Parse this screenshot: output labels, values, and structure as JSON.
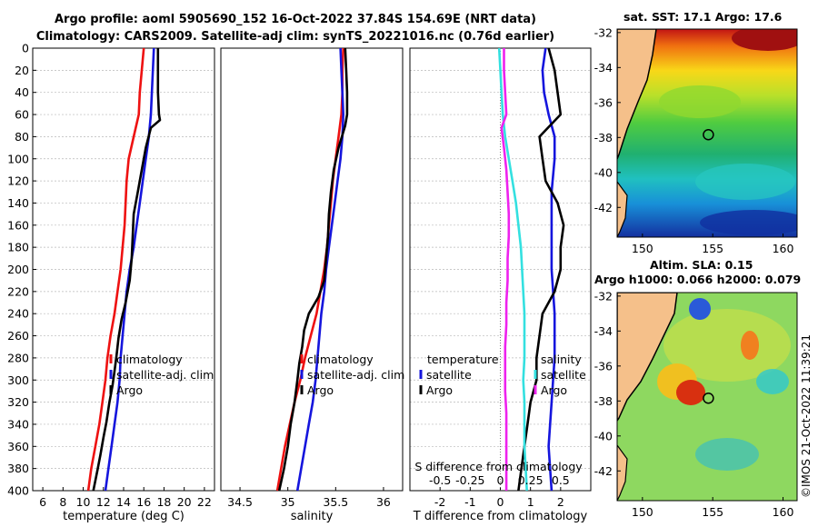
{
  "header": {
    "line1": "Argo profile: aoml 5905690_152 16-Oct-2022 37.84S 154.69E (NRT data)",
    "line2": "Climatology: CARS2009. Satellite-adj clim: synTS_20221016.nc (0.76d earlier)"
  },
  "colors": {
    "climatology": "#ee1111",
    "satellite": "#1515dd",
    "argo": "#000000",
    "temperature_diff": "#33e0e0",
    "salinity_diff": "#ee22ee",
    "land": "#f5c08a"
  },
  "chart_data": [
    {
      "type": "line",
      "name": "temperature",
      "xlabel": "temperature (deg C)",
      "ylabel": "",
      "xlim": [
        5,
        23
      ],
      "ylim": [
        0,
        400
      ],
      "y_inverted": true,
      "xticks": [
        6,
        8,
        10,
        12,
        14,
        16,
        18,
        20,
        22
      ],
      "yticks": [
        0,
        20,
        40,
        60,
        80,
        100,
        120,
        140,
        160,
        180,
        200,
        220,
        240,
        260,
        280,
        300,
        320,
        340,
        360,
        380,
        400
      ],
      "legend": [
        "climatology",
        "satellite-adj. clim",
        "Argo"
      ],
      "legend_position": "lower-right",
      "series": [
        {
          "name": "climatology",
          "color": "#ee1111",
          "points": [
            [
              16.0,
              0
            ],
            [
              15.8,
              20
            ],
            [
              15.6,
              40
            ],
            [
              15.5,
              60
            ],
            [
              15.0,
              80
            ],
            [
              14.5,
              100
            ],
            [
              14.3,
              120
            ],
            [
              14.2,
              140
            ],
            [
              14.1,
              160
            ],
            [
              13.9,
              180
            ],
            [
              13.7,
              200
            ],
            [
              13.4,
              220
            ],
            [
              13.1,
              240
            ],
            [
              12.7,
              260
            ],
            [
              12.4,
              280
            ],
            [
              12.2,
              300
            ],
            [
              11.9,
              320
            ],
            [
              11.6,
              340
            ],
            [
              11.2,
              360
            ],
            [
              10.8,
              380
            ],
            [
              10.5,
              400
            ]
          ]
        },
        {
          "name": "satellite-adj. clim",
          "color": "#1515dd",
          "points": [
            [
              17.0,
              0
            ],
            [
              16.9,
              20
            ],
            [
              16.8,
              40
            ],
            [
              16.7,
              60
            ],
            [
              16.5,
              80
            ],
            [
              16.2,
              100
            ],
            [
              15.9,
              120
            ],
            [
              15.6,
              140
            ],
            [
              15.3,
              160
            ],
            [
              15.0,
              180
            ],
            [
              14.6,
              200
            ],
            [
              14.3,
              220
            ],
            [
              14.1,
              240
            ],
            [
              13.9,
              260
            ],
            [
              13.7,
              280
            ],
            [
              13.6,
              300
            ],
            [
              13.4,
              320
            ],
            [
              13.1,
              340
            ],
            [
              12.8,
              360
            ],
            [
              12.5,
              380
            ],
            [
              12.2,
              400
            ]
          ]
        },
        {
          "name": "Argo",
          "color": "#000000",
          "points": [
            [
              17.4,
              0
            ],
            [
              17.4,
              20
            ],
            [
              17.4,
              40
            ],
            [
              17.5,
              60
            ],
            [
              17.6,
              65
            ],
            [
              16.7,
              72
            ],
            [
              16.2,
              90
            ],
            [
              15.8,
              110
            ],
            [
              15.4,
              130
            ],
            [
              15.0,
              150
            ],
            [
              14.9,
              170
            ],
            [
              14.8,
              190
            ],
            [
              14.6,
              210
            ],
            [
              14.2,
              230
            ],
            [
              13.8,
              245
            ],
            [
              13.5,
              262
            ],
            [
              13.3,
              278
            ],
            [
              13.1,
              292
            ],
            [
              12.9,
              305
            ],
            [
              12.6,
              320
            ],
            [
              12.3,
              338
            ],
            [
              12.0,
              352
            ],
            [
              11.7,
              368
            ],
            [
              11.4,
              382
            ],
            [
              11.0,
              400
            ]
          ]
        }
      ]
    },
    {
      "type": "line",
      "name": "salinity",
      "xlabel": "salinity",
      "ylabel": "",
      "xlim": [
        34.3,
        36.2
      ],
      "ylim": [
        0,
        400
      ],
      "y_inverted": true,
      "xticks": [
        34.5,
        35,
        35.5,
        36
      ],
      "xticklabels": [
        "34.5",
        "35",
        "35.5",
        "36"
      ],
      "legend": [
        "climatology",
        "satellite-adj. clim",
        "Argo"
      ],
      "legend_position": "lower-right",
      "series": [
        {
          "name": "climatology",
          "color": "#ee1111",
          "points": [
            [
              35.58,
              0
            ],
            [
              35.57,
              20
            ],
            [
              35.57,
              40
            ],
            [
              35.56,
              60
            ],
            [
              35.53,
              80
            ],
            [
              35.5,
              100
            ],
            [
              35.47,
              120
            ],
            [
              35.45,
              140
            ],
            [
              35.43,
              160
            ],
            [
              35.41,
              180
            ],
            [
              35.38,
              200
            ],
            [
              35.34,
              220
            ],
            [
              35.3,
              240
            ],
            [
              35.24,
              260
            ],
            [
              35.18,
              280
            ],
            [
              35.13,
              300
            ],
            [
              35.07,
              320
            ],
            [
              35.02,
              340
            ],
            [
              34.97,
              360
            ],
            [
              34.93,
              380
            ],
            [
              34.89,
              400
            ]
          ]
        },
        {
          "name": "satellite-adj. clim",
          "color": "#1515dd",
          "points": [
            [
              35.55,
              0
            ],
            [
              35.56,
              20
            ],
            [
              35.57,
              40
            ],
            [
              35.58,
              60
            ],
            [
              35.57,
              80
            ],
            [
              35.55,
              100
            ],
            [
              35.52,
              120
            ],
            [
              35.49,
              140
            ],
            [
              35.46,
              160
            ],
            [
              35.43,
              180
            ],
            [
              35.4,
              200
            ],
            [
              35.38,
              220
            ],
            [
              35.35,
              240
            ],
            [
              35.33,
              260
            ],
            [
              35.31,
              280
            ],
            [
              35.29,
              300
            ],
            [
              35.26,
              320
            ],
            [
              35.22,
              340
            ],
            [
              35.18,
              360
            ],
            [
              35.14,
              380
            ],
            [
              35.1,
              400
            ]
          ]
        },
        {
          "name": "Argo",
          "color": "#000000",
          "points": [
            [
              35.6,
              0
            ],
            [
              35.61,
              20
            ],
            [
              35.62,
              40
            ],
            [
              35.62,
              60
            ],
            [
              35.6,
              70
            ],
            [
              35.53,
              90
            ],
            [
              35.48,
              110
            ],
            [
              35.45,
              130
            ],
            [
              35.43,
              150
            ],
            [
              35.42,
              170
            ],
            [
              35.4,
              190
            ],
            [
              35.38,
              210
            ],
            [
              35.32,
              225
            ],
            [
              35.22,
              240
            ],
            [
              35.17,
              255
            ],
            [
              35.15,
              270
            ],
            [
              35.12,
              285
            ],
            [
              35.1,
              300
            ],
            [
              35.07,
              320
            ],
            [
              35.03,
              340
            ],
            [
              35.0,
              360
            ],
            [
              34.96,
              380
            ],
            [
              34.91,
              400
            ]
          ]
        }
      ]
    },
    {
      "type": "line",
      "name": "difference-from-climatology",
      "xlabel": "T difference from climatology",
      "top_axis_label": "S difference from climatology",
      "xlim": [
        -3,
        3
      ],
      "ylim": [
        0,
        400
      ],
      "y_inverted": true,
      "xticks": [
        -2,
        -1,
        0,
        1,
        2
      ],
      "xticklabels": [
        "-2",
        "-1",
        "0",
        "1",
        "2"
      ],
      "top_xticks": [
        -0.5,
        -0.25,
        0,
        0.25,
        0.5
      ],
      "top_xticklabels": [
        "-0.5",
        "-0.25",
        "0",
        "0.25",
        "0.5"
      ],
      "legend_temperature": [
        "temperature",
        "satellite",
        "Argo"
      ],
      "legend_salinity": [
        "salinity",
        "satellite",
        "Argo"
      ],
      "series": [
        {
          "name": "T satellite",
          "color": "#1515dd",
          "group": "temperature",
          "points": [
            [
              1.5,
              0
            ],
            [
              1.4,
              20
            ],
            [
              1.45,
              40
            ],
            [
              1.6,
              60
            ],
            [
              1.8,
              80
            ],
            [
              1.8,
              100
            ],
            [
              1.7,
              130
            ],
            [
              1.7,
              160
            ],
            [
              1.7,
              200
            ],
            [
              1.8,
              240
            ],
            [
              1.8,
              280
            ],
            [
              1.7,
              320
            ],
            [
              1.6,
              360
            ],
            [
              1.7,
              400
            ]
          ]
        },
        {
          "name": "T Argo",
          "color": "#000000",
          "group": "temperature",
          "points": [
            [
              1.6,
              0
            ],
            [
              1.8,
              20
            ],
            [
              1.9,
              40
            ],
            [
              2.0,
              60
            ],
            [
              1.3,
              80
            ],
            [
              1.4,
              100
            ],
            [
              1.5,
              120
            ],
            [
              1.9,
              140
            ],
            [
              2.1,
              160
            ],
            [
              2.0,
              180
            ],
            [
              2.0,
              200
            ],
            [
              1.8,
              220
            ],
            [
              1.4,
              240
            ],
            [
              1.3,
              260
            ],
            [
              1.2,
              280
            ],
            [
              1.2,
              300
            ],
            [
              1.0,
              320
            ],
            [
              0.9,
              340
            ],
            [
              0.8,
              360
            ],
            [
              0.7,
              380
            ],
            [
              0.6,
              400
            ]
          ]
        },
        {
          "name": "S satellite",
          "color": "#33e0e0",
          "group": "salinity",
          "points": [
            [
              -0.01,
              0
            ],
            [
              0.0,
              20
            ],
            [
              0.01,
              40
            ],
            [
              0.02,
              60
            ],
            [
              0.04,
              80
            ],
            [
              0.07,
              100
            ],
            [
              0.1,
              120
            ],
            [
              0.13,
              140
            ],
            [
              0.15,
              160
            ],
            [
              0.17,
              180
            ],
            [
              0.18,
              200
            ],
            [
              0.19,
              220
            ],
            [
              0.2,
              240
            ],
            [
              0.2,
              260
            ],
            [
              0.2,
              280
            ],
            [
              0.19,
              300
            ],
            [
              0.2,
              320
            ],
            [
              0.2,
              340
            ],
            [
              0.2,
              360
            ],
            [
              0.21,
              380
            ],
            [
              0.22,
              400
            ]
          ]
        },
        {
          "name": "S Argo",
          "color": "#ee22ee",
          "group": "salinity",
          "points": [
            [
              0.03,
              0
            ],
            [
              0.03,
              20
            ],
            [
              0.04,
              40
            ],
            [
              0.05,
              60
            ],
            [
              0.01,
              72
            ],
            [
              0.03,
              90
            ],
            [
              0.05,
              110
            ],
            [
              0.06,
              130
            ],
            [
              0.07,
              150
            ],
            [
              0.07,
              170
            ],
            [
              0.06,
              190
            ],
            [
              0.06,
              210
            ],
            [
              0.05,
              230
            ],
            [
              0.05,
              250
            ],
            [
              0.04,
              270
            ],
            [
              0.04,
              290
            ],
            [
              0.04,
              310
            ],
            [
              0.05,
              330
            ],
            [
              0.05,
              350
            ],
            [
              0.05,
              370
            ],
            [
              0.05,
              400
            ]
          ]
        }
      ]
    },
    {
      "type": "heatmap",
      "name": "satellite-sst-map",
      "title": "sat. SST: 17.1 Argo: 17.6",
      "xlim": [
        148.2,
        161.0
      ],
      "ylim": [
        -43.7,
        -31.8
      ],
      "xticks": [
        150,
        155,
        160
      ],
      "yticks": [
        -32,
        -34,
        -36,
        -38,
        -40,
        -42
      ],
      "float_lon": 154.69,
      "float_lat": -37.84
    },
    {
      "type": "heatmap",
      "name": "altimetry-sla-map",
      "title_line1": "Altim. SLA: 0.15",
      "title_line2": "Argo h1000: 0.066 h2000: 0.079",
      "xlim": [
        148.2,
        161.0
      ],
      "ylim": [
        -43.7,
        -31.8
      ],
      "xticks": [
        150,
        155,
        160
      ],
      "yticks": [
        -32,
        -34,
        -36,
        -38,
        -40,
        -42
      ],
      "float_lon": 154.69,
      "float_lat": -37.84
    }
  ],
  "footer": {
    "credit": "©IMOS 21-Oct-2022 11:39:21"
  }
}
